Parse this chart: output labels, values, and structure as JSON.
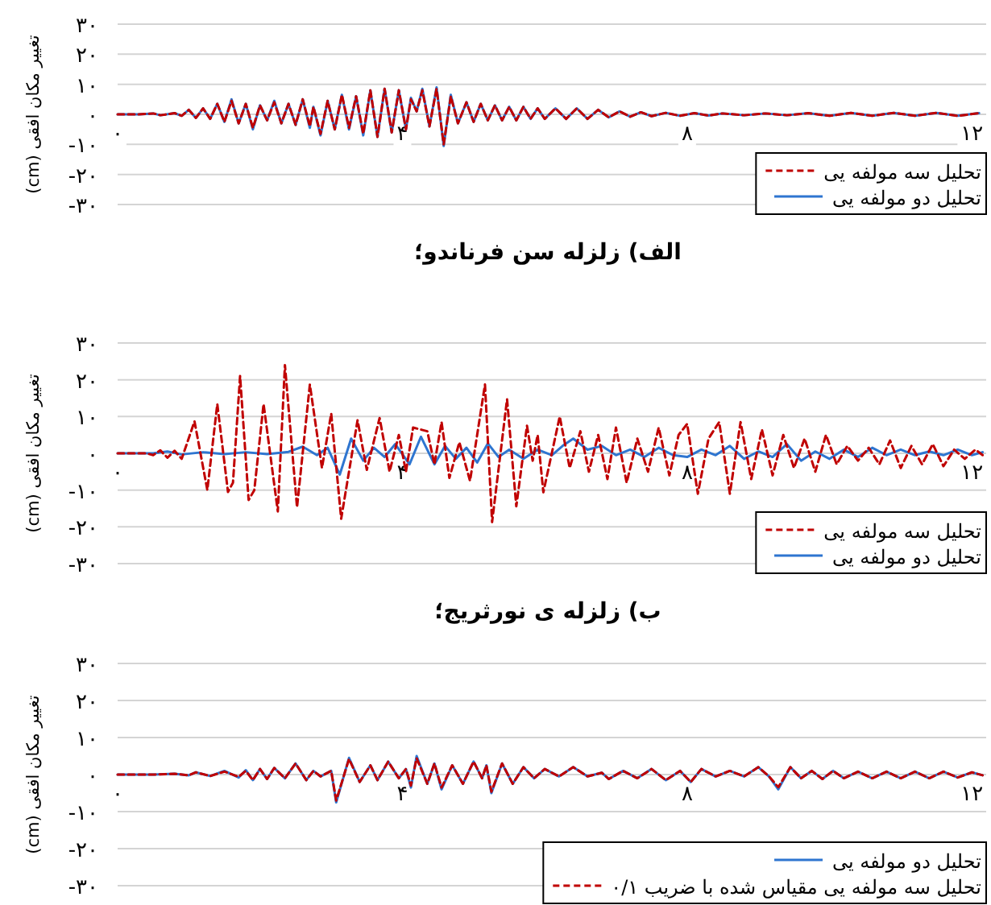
{
  "chart_data": [
    {
      "type": "line",
      "title": "الف) زلزله سن فرناندو؛",
      "ylabel": "تغییر مکان افقی (cm)",
      "xlim": [
        0,
        12.2
      ],
      "ylim": [
        -30,
        30
      ],
      "xticks": [
        {
          "value": 0,
          "label": "۰"
        },
        {
          "value": 4,
          "label": "۴"
        },
        {
          "value": 8,
          "label": "۸"
        },
        {
          "value": 12,
          "label": "۱۲"
        }
      ],
      "yticks": [
        {
          "value": 30,
          "label": "۳۰"
        },
        {
          "value": 20,
          "label": "۲۰"
        },
        {
          "value": 10,
          "label": "۱۰"
        },
        {
          "value": 0,
          "label": "۰"
        },
        {
          "value": -10,
          "label": "-۱۰"
        },
        {
          "value": -20,
          "label": "-۲۰"
        },
        {
          "value": -30,
          "label": "-۳۰"
        }
      ],
      "grid": "y",
      "legend": "bottom right",
      "series": [
        {
          "name": "تحلیل سه مولفه یی",
          "color": "#c00000",
          "line_style": "dashed",
          "x": [
            0,
            0.3,
            0.5,
            0.6,
            0.8,
            0.9,
            1.0,
            1.1,
            1.2,
            1.3,
            1.4,
            1.5,
            1.6,
            1.7,
            1.8,
            1.9,
            2.0,
            2.1,
            2.2,
            2.3,
            2.4,
            2.5,
            2.6,
            2.7,
            2.75,
            2.85,
            2.95,
            3.05,
            3.15,
            3.25,
            3.35,
            3.45,
            3.55,
            3.65,
            3.75,
            3.85,
            3.95,
            4.05,
            4.12,
            4.2,
            4.28,
            4.38,
            4.48,
            4.58,
            4.68,
            4.78,
            4.9,
            5.0,
            5.1,
            5.2,
            5.3,
            5.4,
            5.5,
            5.6,
            5.7,
            5.8,
            5.9,
            6.0,
            6.15,
            6.3,
            6.45,
            6.6,
            6.75,
            6.9,
            7.05,
            7.2,
            7.35,
            7.5,
            7.7,
            7.9,
            8.1,
            8.3,
            8.5,
            8.8,
            9.1,
            9.4,
            9.7,
            10.0,
            10.3,
            10.6,
            10.9,
            11.2,
            11.5,
            11.8,
            12.1
          ],
          "values": [
            0,
            0,
            0.3,
            -0.3,
            0.4,
            -0.5,
            1.5,
            -1.2,
            2,
            -1.5,
            3.5,
            -2.5,
            4.5,
            -3,
            3.5,
            -4.5,
            3,
            -2,
            4,
            -3,
            3.5,
            -3.5,
            5,
            -4,
            2.5,
            -6.5,
            4.5,
            -5,
            6.5,
            -4.5,
            6,
            -6.5,
            8,
            -7.5,
            8.5,
            -6,
            8,
            -5,
            5,
            1,
            8,
            -4,
            8.5,
            -10,
            6,
            -3,
            4,
            -2.5,
            3.5,
            -2,
            3,
            -2,
            2.5,
            -2,
            2.5,
            -1.5,
            2,
            -1.5,
            2,
            -1.5,
            2,
            -1.5,
            1.5,
            -1,
            1,
            -0.8,
            0.7,
            -0.6,
            0.5,
            -0.5,
            0.4,
            -0.4,
            0.3,
            -0.3,
            0.3,
            -0.3,
            0.4,
            -0.5,
            0.5,
            -0.5,
            0.5,
            -0.5,
            0.5,
            -0.5,
            0.4
          ]
        },
        {
          "name": "تحلیل دو مولفه یی",
          "color": "#2e75d0",
          "line_style": "solid",
          "x": [
            0,
            0.3,
            0.5,
            0.6,
            0.8,
            0.9,
            1.0,
            1.1,
            1.2,
            1.3,
            1.4,
            1.5,
            1.6,
            1.7,
            1.8,
            1.9,
            2.0,
            2.1,
            2.2,
            2.3,
            2.4,
            2.5,
            2.6,
            2.7,
            2.75,
            2.85,
            2.95,
            3.05,
            3.15,
            3.25,
            3.35,
            3.45,
            3.55,
            3.65,
            3.75,
            3.85,
            3.95,
            4.05,
            4.12,
            4.2,
            4.28,
            4.38,
            4.48,
            4.58,
            4.68,
            4.78,
            4.9,
            5.0,
            5.1,
            5.2,
            5.3,
            5.4,
            5.5,
            5.6,
            5.7,
            5.8,
            5.9,
            6.0,
            6.15,
            6.3,
            6.45,
            6.6,
            6.75,
            6.9,
            7.05,
            7.2,
            7.35,
            7.5,
            7.7,
            7.9,
            8.1,
            8.3,
            8.5,
            8.8,
            9.1,
            9.4,
            9.7,
            10.0,
            10.3,
            10.6,
            10.9,
            11.2,
            11.5,
            11.8,
            12.1
          ],
          "values": [
            0,
            0,
            0.3,
            -0.3,
            0.4,
            -0.5,
            1.5,
            -1.2,
            2,
            -1.5,
            3.5,
            -2.5,
            5,
            -3,
            3.5,
            -5,
            3,
            -2,
            4.5,
            -3,
            3.5,
            -3.5,
            5,
            -4.5,
            2.5,
            -7,
            4.5,
            -5,
            6.5,
            -5,
            6,
            -7,
            8,
            -7.5,
            8.5,
            -6,
            8,
            -5,
            5.5,
            1,
            8.5,
            -4,
            9,
            -10.5,
            6.5,
            -3,
            4,
            -2.5,
            3.5,
            -2,
            3,
            -2,
            2.5,
            -2,
            2.5,
            -1.5,
            2,
            -1.5,
            2,
            -1.5,
            2,
            -1.5,
            1.5,
            -1,
            1,
            -0.8,
            0.7,
            -0.6,
            0.5,
            -0.5,
            0.4,
            -0.4,
            0.3,
            -0.3,
            0.3,
            -0.3,
            0.4,
            -0.5,
            0.5,
            -0.5,
            0.5,
            -0.5,
            0.5,
            -0.5,
            0.4
          ]
        }
      ]
    },
    {
      "type": "line",
      "title": "ب) زلزله ی نورثریج؛",
      "ylabel": "تغییر مکان افقی (cm)",
      "xlim": [
        0,
        12.2
      ],
      "ylim": [
        -30,
        30
      ],
      "xticks": [
        {
          "value": 0,
          "label": "۰"
        },
        {
          "value": 4,
          "label": "۴"
        },
        {
          "value": 8,
          "label": "۸"
        },
        {
          "value": 12,
          "label": "۱۲"
        }
      ],
      "yticks": [
        {
          "value": 30,
          "label": "۳۰"
        },
        {
          "value": 20,
          "label": "۲۰"
        },
        {
          "value": 10,
          "label": "۱۰"
        },
        {
          "value": 0,
          "label": "۰"
        },
        {
          "value": -10,
          "label": "-۱۰"
        },
        {
          "value": -20,
          "label": "-۲۰"
        },
        {
          "value": -30,
          "label": "-۳۰"
        }
      ],
      "grid": "y",
      "legend": "bottom right",
      "series": [
        {
          "name": "تحلیل سه مولفه یی",
          "color": "#c00000",
          "line_style": "dashed",
          "x": [
            0,
            0.4,
            0.5,
            0.6,
            0.7,
            0.8,
            0.9,
            1.08,
            1.26,
            1.4,
            1.55,
            1.62,
            1.72,
            1.84,
            1.92,
            2.05,
            2.25,
            2.35,
            2.52,
            2.7,
            2.87,
            3.0,
            3.14,
            3.37,
            3.5,
            3.68,
            3.82,
            3.95,
            4.05,
            4.15,
            4.35,
            4.45,
            4.55,
            4.66,
            4.8,
            4.95,
            5.16,
            5.26,
            5.47,
            5.6,
            5.75,
            5.83,
            5.9,
            5.98,
            6.21,
            6.35,
            6.5,
            6.62,
            6.75,
            6.88,
            7.0,
            7.15,
            7.3,
            7.45,
            7.6,
            7.75,
            7.88,
            8.0,
            8.15,
            8.3,
            8.45,
            8.6,
            8.75,
            8.9,
            9.05,
            9.2,
            9.35,
            9.5,
            9.65,
            9.8,
            9.95,
            10.1,
            10.25,
            10.4,
            10.55,
            10.7,
            10.85,
            11.0,
            11.15,
            11.3,
            11.45,
            11.6,
            11.75,
            11.9,
            12.05,
            12.15
          ],
          "values": [
            0,
            0,
            -0.5,
            0.8,
            -1.2,
            0.7,
            -1.5,
            8.7,
            -10,
            13.4,
            -10.5,
            -8,
            21,
            -12.7,
            -10,
            13.4,
            -15.8,
            24,
            -14.7,
            18.7,
            -4,
            10.8,
            -17.8,
            9,
            -4.5,
            9.6,
            -5,
            5,
            -5,
            7,
            6,
            -3,
            8.5,
            -6.7,
            3,
            -7.5,
            18.7,
            -18.7,
            14.7,
            -14.4,
            7.5,
            -2,
            5,
            -10.6,
            10,
            -4,
            6,
            -5,
            5,
            -7,
            7,
            -8,
            4,
            -5,
            7,
            -6,
            5,
            8,
            -11,
            4,
            8.5,
            -11,
            8.5,
            -7,
            6.5,
            -6,
            5,
            -4,
            4,
            -5,
            5,
            -3,
            2,
            -2,
            1.5,
            -3,
            3.5,
            -4,
            2,
            -3,
            2.5,
            -3.5,
            1,
            -1.5,
            1,
            -0.5
          ]
        },
        {
          "name": "تحلیل دو مولفه یی",
          "color": "#2e75d0",
          "line_style": "solid",
          "x": [
            0,
            0.5,
            0.7,
            0.9,
            1.2,
            1.5,
            1.8,
            2.1,
            2.4,
            2.6,
            2.8,
            2.95,
            3.12,
            3.28,
            3.45,
            3.6,
            3.75,
            3.9,
            4.1,
            4.26,
            4.45,
            4.6,
            4.75,
            4.9,
            5.05,
            5.2,
            5.35,
            5.5,
            5.7,
            5.9,
            6.1,
            6.25,
            6.4,
            6.6,
            6.8,
            7.0,
            7.2,
            7.4,
            7.6,
            7.8,
            8.0,
            8.2,
            8.4,
            8.6,
            8.8,
            9.0,
            9.2,
            9.4,
            9.6,
            9.8,
            10.0,
            10.2,
            10.4,
            10.6,
            10.8,
            11.0,
            11.2,
            11.4,
            11.6,
            11.8,
            12.0,
            12.15
          ],
          "values": [
            0,
            0,
            0.5,
            -0.3,
            0.3,
            -0.2,
            0.3,
            -0.2,
            0.4,
            1.8,
            -0.5,
            1.5,
            -5.8,
            4,
            -2,
            1.5,
            -1,
            2.5,
            -3,
            4.5,
            -3,
            2,
            -1.5,
            1.5,
            -2.5,
            2.7,
            -1,
            1,
            -1.5,
            1,
            -0.5,
            2,
            4,
            1,
            2,
            -0.5,
            1,
            -1,
            1.5,
            -0.5,
            -1,
            1,
            -0.5,
            2,
            -1.5,
            0.5,
            -1,
            2.5,
            -2,
            0.5,
            -1.5,
            1,
            -1,
            1.5,
            -0.5,
            1,
            -0.5,
            0.5,
            -0.5,
            1,
            -0.5,
            0.3
          ]
        }
      ]
    },
    {
      "type": "line",
      "ylabel": "تغییر مکان افقی (cm)",
      "xlim": [
        0,
        12.2
      ],
      "ylim": [
        -30,
        30
      ],
      "xticks": [
        {
          "value": 0,
          "label": "۰"
        },
        {
          "value": 4,
          "label": "۴"
        },
        {
          "value": 8,
          "label": "۸"
        },
        {
          "value": 12,
          "label": "۱۲"
        }
      ],
      "yticks": [
        {
          "value": 30,
          "label": "۳۰"
        },
        {
          "value": 20,
          "label": "۲۰"
        },
        {
          "value": 10,
          "label": "۱۰"
        },
        {
          "value": 0,
          "label": "۰"
        },
        {
          "value": -10,
          "label": "-۱۰"
        },
        {
          "value": -20,
          "label": "-۲۰"
        },
        {
          "value": -30,
          "label": "-۳۰"
        }
      ],
      "grid": "y",
      "legend": "bottom right",
      "series": [
        {
          "name": "تحلیل دو مولفه یی",
          "color": "#2e75d0",
          "line_style": "solid",
          "x": [
            0,
            0.5,
            0.8,
            1.0,
            1.1,
            1.3,
            1.5,
            1.7,
            1.8,
            1.9,
            2.0,
            2.1,
            2.2,
            2.35,
            2.5,
            2.65,
            2.75,
            2.85,
            3.0,
            3.07,
            3.25,
            3.4,
            3.55,
            3.65,
            3.8,
            3.95,
            4.05,
            4.12,
            4.2,
            4.35,
            4.45,
            4.55,
            4.7,
            4.85,
            5.0,
            5.12,
            5.18,
            5.25,
            5.4,
            5.55,
            5.7,
            5.85,
            6.0,
            6.2,
            6.4,
            6.6,
            6.8,
            6.9,
            7.1,
            7.3,
            7.5,
            7.7,
            7.9,
            8.05,
            8.2,
            8.4,
            8.6,
            8.8,
            9.0,
            9.15,
            9.28,
            9.45,
            9.6,
            9.75,
            9.9,
            10.05,
            10.2,
            10.4,
            10.6,
            10.8,
            11.0,
            11.2,
            11.4,
            11.6,
            11.8,
            12.0,
            12.15
          ],
          "values": [
            0,
            0,
            0.2,
            -0.2,
            0.6,
            -0.4,
            1,
            -0.8,
            1.2,
            -1.5,
            1.5,
            -1.2,
            1.8,
            -1,
            3,
            -1.5,
            1,
            -0.5,
            1,
            -7.5,
            4.5,
            -2,
            2.5,
            -1.5,
            3.5,
            -1,
            1.5,
            -3.5,
            5,
            -2.5,
            3,
            -4,
            2.5,
            -2.5,
            3.5,
            -1,
            2.5,
            -5,
            3,
            -2.5,
            2,
            -1,
            1.5,
            -0.5,
            2,
            -0.5,
            0.5,
            -1.2,
            1,
            -1,
            1.5,
            -1.5,
            1,
            -2,
            1.5,
            -0.5,
            1,
            -0.5,
            2,
            -0.5,
            -4,
            2,
            -1,
            1,
            -1.2,
            1,
            -1,
            0.8,
            -1,
            0.8,
            -1,
            0.8,
            -1,
            0.8,
            -0.8,
            0.6,
            -0.2
          ]
        },
        {
          "name": "تحلیل سه مولفه یی مقیاس شده با ضریب ۰/۱",
          "color": "#c00000",
          "line_style": "dashed",
          "x": [
            0,
            0.5,
            0.8,
            1.0,
            1.1,
            1.3,
            1.5,
            1.7,
            1.8,
            1.9,
            2.0,
            2.1,
            2.2,
            2.35,
            2.5,
            2.65,
            2.75,
            2.85,
            3.0,
            3.07,
            3.25,
            3.4,
            3.55,
            3.65,
            3.8,
            3.95,
            4.05,
            4.12,
            4.2,
            4.35,
            4.45,
            4.55,
            4.7,
            4.85,
            5.0,
            5.12,
            5.18,
            5.25,
            5.4,
            5.55,
            5.7,
            5.85,
            6.0,
            6.2,
            6.4,
            6.6,
            6.8,
            6.9,
            7.1,
            7.3,
            7.5,
            7.7,
            7.9,
            8.05,
            8.2,
            8.4,
            8.6,
            8.8,
            9.0,
            9.15,
            9.28,
            9.45,
            9.6,
            9.75,
            9.9,
            10.05,
            10.2,
            10.4,
            10.6,
            10.8,
            11.0,
            11.2,
            11.4,
            11.6,
            11.8,
            12.0,
            12.15
          ],
          "values": [
            0,
            0,
            0.2,
            -0.2,
            0.6,
            -0.4,
            0.8,
            -0.6,
            1,
            -1.5,
            1.5,
            -1.2,
            1.8,
            -1,
            3,
            -1.5,
            1,
            -0.5,
            1,
            -7,
            4.2,
            -2,
            2.5,
            -1.5,
            3.5,
            -1,
            1.5,
            -3,
            4.4,
            -2.5,
            3,
            -3.5,
            2.5,
            -2.5,
            3.5,
            -1,
            2.5,
            -4.6,
            3,
            -2.5,
            2,
            -1,
            1.5,
            -0.5,
            2,
            -0.5,
            0.5,
            -1.2,
            1,
            -1,
            1.5,
            -1.5,
            1,
            -2,
            1.5,
            -0.5,
            1,
            -0.5,
            2,
            -0.5,
            -3.4,
            2,
            -1,
            1,
            -1.2,
            1,
            -1,
            0.8,
            -1,
            0.8,
            -1,
            0.8,
            -1,
            0.8,
            -0.8,
            0.6,
            -0.2
          ]
        }
      ]
    }
  ]
}
